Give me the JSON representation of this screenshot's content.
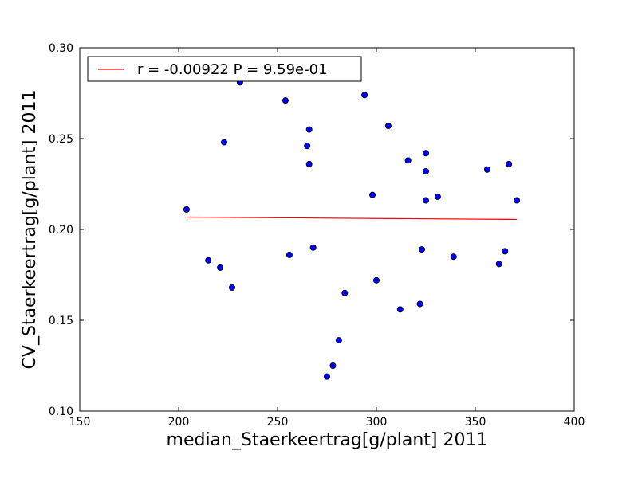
{
  "chart_data": {
    "type": "scatter",
    "title": "",
    "xlabel": "median_Staerkeertrag[g/plant] 2011",
    "ylabel": "CV_Staerkeertrag[g/plant] 2011",
    "xlim": [
      150,
      400
    ],
    "ylim": [
      0.1,
      0.3
    ],
    "xticks": [
      150,
      200,
      250,
      300,
      350,
      400
    ],
    "xtick_labels": [
      "150",
      "200",
      "250",
      "300",
      "350",
      "400"
    ],
    "yticks": [
      0.1,
      0.15,
      0.2,
      0.25,
      0.3
    ],
    "ytick_labels": [
      "0.10",
      "0.15",
      "0.20",
      "0.25",
      "0.30"
    ],
    "grid": false,
    "legend_position": "top-left",
    "colors": {
      "points": "#0000ff",
      "fit": "#ff0000",
      "axes": "#000000"
    },
    "series": [
      {
        "kind": "scatter",
        "x": [
          204,
          215,
          221,
          223,
          227,
          231,
          254,
          256,
          265,
          266,
          266,
          268,
          275,
          278,
          281,
          284,
          294,
          298,
          300,
          306,
          312,
          316,
          322,
          323,
          325,
          325,
          325,
          331,
          339,
          356,
          362,
          365,
          367,
          371
        ],
        "y": [
          0.211,
          0.183,
          0.179,
          0.248,
          0.168,
          0.281,
          0.271,
          0.186,
          0.246,
          0.255,
          0.236,
          0.19,
          0.119,
          0.125,
          0.139,
          0.165,
          0.274,
          0.219,
          0.172,
          0.257,
          0.156,
          0.238,
          0.159,
          0.189,
          0.242,
          0.232,
          0.216,
          0.218,
          0.185,
          0.233,
          0.181,
          0.188,
          0.236,
          0.216
        ]
      },
      {
        "kind": "line",
        "name": "r = -0.00922  P = 9.59e-01",
        "x": [
          204,
          371
        ],
        "y": [
          0.2068,
          0.2055
        ]
      }
    ]
  }
}
